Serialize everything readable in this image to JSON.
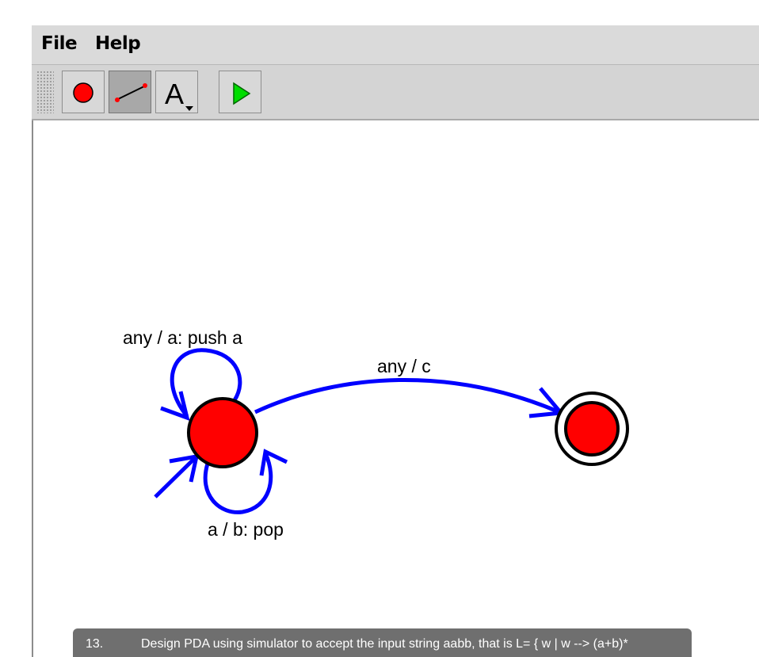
{
  "menubar": {
    "items": [
      {
        "label": "File"
      },
      {
        "label": "Help"
      }
    ]
  },
  "toolbar": {
    "buttons": [
      {
        "icon": "state-tool-icon",
        "pressed": false
      },
      {
        "icon": "transition-tool-icon",
        "pressed": true
      },
      {
        "icon": "text-tool-icon",
        "glyph": "A",
        "pressed": false
      },
      {
        "icon": "run-simulation-icon",
        "pressed": false
      }
    ]
  },
  "diagram": {
    "colors": {
      "state_fill": "#ff0000",
      "transition": "#0000ff",
      "outline": "#000000"
    },
    "states": [
      {
        "id": "start",
        "initial": true,
        "final": false
      },
      {
        "id": "accept",
        "initial": false,
        "final": true
      }
    ],
    "transitions": [
      {
        "from": "start",
        "to": "start",
        "label": "any / a: push a"
      },
      {
        "from": "start",
        "to": "start",
        "label": "a / b: pop"
      },
      {
        "from": "start",
        "to": "accept",
        "label": "any / c"
      }
    ]
  },
  "caption": {
    "number": "13.",
    "text": "Design PDA using simulator to accept the input string aabb, that is  L= { w | w --> (a+b)*"
  }
}
